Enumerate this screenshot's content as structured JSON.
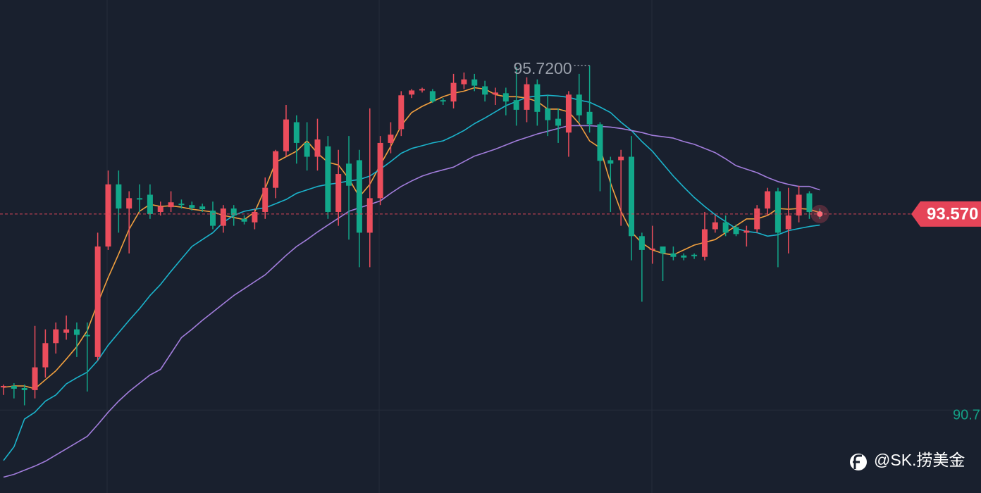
{
  "chart_data": {
    "type": "candlestick",
    "categories": [
      null,
      null,
      null,
      null,
      null,
      null,
      null,
      null,
      null,
      null,
      null,
      null,
      null,
      null,
      null,
      null,
      null,
      null,
      null,
      null,
      null,
      null,
      null,
      null,
      null,
      null,
      null,
      null,
      null,
      null,
      null,
      null,
      null,
      null,
      null,
      null,
      null,
      null,
      null,
      null,
      null,
      null,
      null,
      null,
      null,
      null,
      null,
      null,
      null,
      null,
      null,
      null,
      null,
      null,
      null,
      null,
      null,
      null,
      null,
      null,
      null,
      null,
      null,
      null,
      null,
      null,
      null,
      null,
      null,
      null,
      null,
      null,
      null,
      null,
      null,
      null,
      null,
      null,
      null
    ],
    "open": [
      91.06,
      91.08,
      91.05,
      91.02,
      91.35,
      91.7,
      91.85,
      91.9,
      91.82,
      91.5,
      93.1,
      94.0,
      93.65,
      93.8,
      93.85,
      93.6,
      93.67,
      93.72,
      93.7,
      93.68,
      93.62,
      93.4,
      93.65,
      93.5,
      93.45,
      93.6,
      93.95,
      94.48,
      94.9,
      94.6,
      94.4,
      94.55,
      93.6,
      94.3,
      94.35,
      93.3,
      93.8,
      94.6,
      94.8,
      95.3,
      95.36,
      95.35,
      95.22,
      95.2,
      95.45,
      95.52,
      95.42,
      95.3,
      95.32,
      95.22,
      95.08,
      95.45,
      95.1,
      94.95,
      94.75,
      95.3,
      95.05,
      94.87,
      94.35,
      94.35,
      94.4,
      93.25,
      93.05,
      93.1,
      93.0,
      92.97,
      92.98,
      92.95,
      93.35,
      93.45,
      93.38,
      93.3,
      93.35,
      93.65,
      93.9,
      93.35,
      93.55,
      93.87,
      93.6
    ],
    "high": [
      91.1,
      91.12,
      91.1,
      91.95,
      91.9,
      92.0,
      92.1,
      92.0,
      92.0,
      93.3,
      94.2,
      94.2,
      93.9,
      94.0,
      94.0,
      93.75,
      93.9,
      93.78,
      93.75,
      93.72,
      93.75,
      93.7,
      93.7,
      93.55,
      93.65,
      94.1,
      94.5,
      95.15,
      95.0,
      94.9,
      94.95,
      94.7,
      94.5,
      94.7,
      94.5,
      95.1,
      94.7,
      94.9,
      95.35,
      95.38,
      95.4,
      95.38,
      95.25,
      95.6,
      95.62,
      95.6,
      95.5,
      95.4,
      95.4,
      95.7,
      95.55,
      95.52,
      95.3,
      95.1,
      95.35,
      95.6,
      95.72,
      94.9,
      94.4,
      94.5,
      94.7,
      93.3,
      93.4,
      93.1,
      93.1,
      93.0,
      93.0,
      93.6,
      93.55,
      93.55,
      93.42,
      93.4,
      93.7,
      93.95,
      93.95,
      93.95,
      93.98,
      93.9,
      93.65
    ],
    "low": [
      90.95,
      90.9,
      90.8,
      90.9,
      91.2,
      91.55,
      91.75,
      91.5,
      91.0,
      91.45,
      93.05,
      93.3,
      93.0,
      93.6,
      93.5,
      93.55,
      93.6,
      93.65,
      93.62,
      93.6,
      93.35,
      93.3,
      93.4,
      93.42,
      93.35,
      93.5,
      93.8,
      94.4,
      94.3,
      94.2,
      94.2,
      93.5,
      93.4,
      93.2,
      92.8,
      92.8,
      93.7,
      94.45,
      94.7,
      95.25,
      95.33,
      95.18,
      95.15,
      95.1,
      95.38,
      95.35,
      95.2,
      95.15,
      95.0,
      94.85,
      94.9,
      94.85,
      94.7,
      94.6,
      94.4,
      94.9,
      94.75,
      93.9,
      93.6,
      93.4,
      92.9,
      92.3,
      92.85,
      92.6,
      92.9,
      92.9,
      92.92,
      92.9,
      93.3,
      93.25,
      93.25,
      93.1,
      93.3,
      93.55,
      92.8,
      93.0,
      93.45,
      93.5,
      93.5
    ],
    "close": [
      91.08,
      91.04,
      91.02,
      91.35,
      91.7,
      91.9,
      91.9,
      91.82,
      91.8,
      93.1,
      94.0,
      93.65,
      93.8,
      93.78,
      93.57,
      93.68,
      93.74,
      93.7,
      93.66,
      93.64,
      93.4,
      93.65,
      93.55,
      93.46,
      93.6,
      93.95,
      94.48,
      94.94,
      94.6,
      94.4,
      94.65,
      93.6,
      94.15,
      93.98,
      93.3,
      93.8,
      94.6,
      94.72,
      95.29,
      95.36,
      95.38,
      95.2,
      95.2,
      95.47,
      95.52,
      95.43,
      95.3,
      95.33,
      95.2,
      95.08,
      95.45,
      95.05,
      94.93,
      94.85,
      95.3,
      95.0,
      94.87,
      94.34,
      94.3,
      94.4,
      93.25,
      93.05,
      93.07,
      93.0,
      92.95,
      92.94,
      92.96,
      93.35,
      93.45,
      93.3,
      93.28,
      93.33,
      93.65,
      93.9,
      93.3,
      93.55,
      93.85,
      93.6,
      93.57
    ],
    "up_color": "#eb4d5c",
    "down_color": "#12a88a",
    "series": [
      {
        "type": "line",
        "color": "#f2a03f",
        "values": [
          91.06,
          91.08,
          91.08,
          91.04,
          91.17,
          91.3,
          91.47,
          91.65,
          91.88,
          92.28,
          92.65,
          92.99,
          93.35,
          93.61,
          93.71,
          93.68,
          93.69,
          93.67,
          93.64,
          93.62,
          93.6,
          93.55,
          93.52,
          93.49,
          93.6,
          93.94,
          94.32,
          94.4,
          94.48,
          94.63,
          94.45,
          94.32,
          94.28,
          94.08,
          93.82,
          94.0,
          94.28,
          94.55,
          94.85,
          95.04,
          95.13,
          95.2,
          95.27,
          95.32,
          95.35,
          95.4,
          95.38,
          95.3,
          95.27,
          95.27,
          95.25,
          95.2,
          95.09,
          95.09,
          95.05,
          94.88,
          94.63,
          94.53,
          94.02,
          93.61,
          93.31,
          93.15,
          93.05,
          93.0,
          92.98,
          93.05,
          93.12,
          93.16,
          93.2,
          93.3,
          93.4,
          93.5,
          93.5,
          93.55,
          93.65,
          93.64,
          93.65,
          93.64,
          93.59
        ]
      },
      {
        "type": "line",
        "color": "#1bb4cc",
        "values": [
          90.0,
          90.2,
          90.6,
          90.7,
          90.86,
          90.95,
          91.11,
          91.2,
          91.28,
          91.45,
          91.67,
          91.85,
          92.03,
          92.2,
          92.39,
          92.55,
          92.74,
          92.92,
          93.1,
          93.2,
          93.3,
          93.45,
          93.55,
          93.61,
          93.64,
          93.66,
          93.72,
          93.78,
          93.87,
          93.92,
          93.97,
          94.0,
          94.02,
          94.05,
          94.07,
          94.12,
          94.22,
          94.33,
          94.45,
          94.52,
          94.56,
          94.6,
          94.63,
          94.7,
          94.78,
          94.88,
          94.96,
          95.05,
          95.14,
          95.2,
          95.26,
          95.28,
          95.29,
          95.28,
          95.26,
          95.22,
          95.19,
          95.12,
          95.04,
          94.9,
          94.78,
          94.62,
          94.48,
          94.3,
          94.12,
          93.96,
          93.81,
          93.68,
          93.56,
          93.46,
          93.36,
          93.32,
          93.3,
          93.25,
          93.27,
          93.33,
          93.36,
          93.39,
          93.41
        ]
      },
      {
        "type": "line",
        "color": "#a27ddc",
        "values": [
          89.76,
          89.8,
          89.86,
          89.92,
          89.99,
          90.08,
          90.17,
          90.26,
          90.35,
          90.52,
          90.7,
          90.86,
          91.0,
          91.12,
          91.24,
          91.32,
          91.55,
          91.78,
          91.9,
          92.03,
          92.15,
          92.27,
          92.39,
          92.49,
          92.59,
          92.69,
          92.83,
          92.97,
          93.1,
          93.2,
          93.31,
          93.41,
          93.51,
          93.61,
          93.66,
          93.71,
          93.76,
          93.87,
          93.97,
          94.05,
          94.12,
          94.17,
          94.21,
          94.25,
          94.33,
          94.41,
          94.46,
          94.51,
          94.57,
          94.63,
          94.68,
          94.73,
          94.77,
          94.81,
          94.85,
          94.85,
          94.85,
          94.84,
          94.83,
          94.81,
          94.78,
          94.75,
          94.71,
          94.69,
          94.67,
          94.62,
          94.58,
          94.52,
          94.46,
          94.37,
          94.27,
          94.22,
          94.17,
          94.1,
          94.04,
          94.0,
          93.97,
          93.97,
          93.92
        ]
      }
    ],
    "ylim": [
      89.53,
      96.67
    ],
    "yticks": [
      90.7
    ],
    "last_price": {
      "value": 93.57,
      "label": "93.570"
    },
    "max_annotation": {
      "value": 95.72,
      "label": "95.7200"
    }
  },
  "watermark": "@SK.捞美金"
}
